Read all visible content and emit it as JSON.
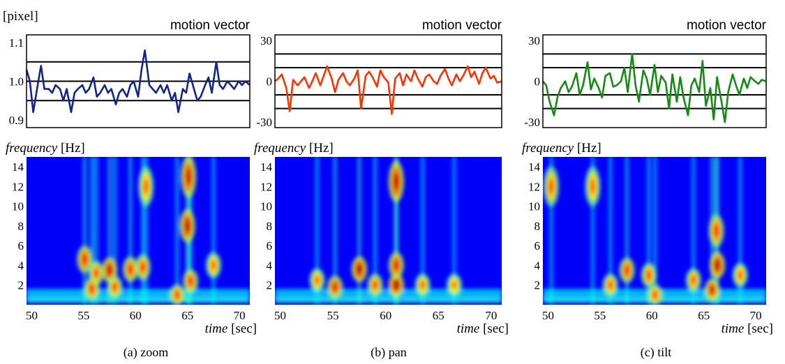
{
  "figure": {
    "unit_label": "[pixel]"
  },
  "chart_data": [
    {
      "type": "line",
      "panel": "zoom",
      "caption": "(a)  zoom",
      "title": "motion vector",
      "color": "#13238f",
      "ylim": [
        0.88,
        1.12
      ],
      "yticks": [
        {
          "v": 1.1,
          "label": "1.1"
        },
        {
          "v": 1.0,
          "label": "1.0"
        },
        {
          "v": 0.9,
          "label": "0.9"
        }
      ],
      "gridlines": [
        1.05,
        1.0,
        0.95
      ],
      "x": [
        50,
        50.3,
        50.6,
        51,
        51.3,
        51.6,
        52,
        52.3,
        52.6,
        53,
        53.3,
        53.6,
        54,
        54.3,
        54.6,
        55,
        55.3,
        55.6,
        56,
        56.3,
        56.6,
        57,
        57.3,
        57.6,
        58,
        58.3,
        58.6,
        59,
        59.3,
        59.6,
        60,
        60.3,
        60.6,
        61,
        61.3,
        61.6,
        62,
        62.3,
        62.6,
        63,
        63.3,
        63.6,
        64,
        64.3,
        64.6,
        65,
        65.3,
        65.6,
        66,
        66.3,
        66.6,
        67,
        67.3,
        67.6,
        68,
        68.3,
        68.6,
        69,
        69.3,
        69.6,
        70
      ],
      "values": [
        1.03,
        1.0,
        0.92,
        0.99,
        1.04,
        0.98,
        0.98,
        0.97,
        0.99,
        0.98,
        0.95,
        0.98,
        0.92,
        0.97,
        0.98,
        0.99,
        0.97,
        0.98,
        1.01,
        0.96,
        0.97,
        0.99,
        0.97,
        0.98,
        0.94,
        0.97,
        0.98,
        0.96,
        0.99,
        1.0,
        0.96,
        1.03,
        1.08,
        0.99,
        0.98,
        0.97,
        0.99,
        0.97,
        0.99,
        0.95,
        0.97,
        0.92,
        0.98,
        0.97,
        1.02,
        0.98,
        0.95,
        0.96,
        0.99,
        1.01,
        0.97,
        1.05,
        0.99,
        0.98,
        1.0,
        0.99,
        0.98,
        1.0,
        0.99,
        1.0,
        0.99
      ],
      "heatmap": {
        "ylabel_word": "frequency",
        "ylabel_unit": "[Hz]",
        "xlabel_word": "time",
        "xlabel_unit": "[sec]",
        "xlim": [
          49.5,
          71
        ],
        "ylim": [
          0,
          15
        ],
        "xticks": [
          {
            "v": 50,
            "label": "50"
          },
          {
            "v": 55,
            "label": "55"
          },
          {
            "v": 60,
            "label": "60"
          },
          {
            "v": 65,
            "label": "65"
          },
          {
            "v": 70,
            "label": "70"
          }
        ],
        "yticks": [
          {
            "v": 14,
            "label": "14"
          },
          {
            "v": 12,
            "label": "12"
          },
          {
            "v": 10,
            "label": "10"
          },
          {
            "v": 8,
            "label": "8"
          },
          {
            "v": 6,
            "label": "6"
          },
          {
            "v": 4,
            "label": "4"
          },
          {
            "v": 2,
            "label": "2"
          }
        ],
        "peaks": [
          {
            "t": 55.1,
            "f": 4.6,
            "intensity": 0.75
          },
          {
            "t": 56.2,
            "f": 3.2,
            "intensity": 0.6
          },
          {
            "t": 57.5,
            "f": 3.5,
            "intensity": 0.9
          },
          {
            "t": 59.5,
            "f": 3.6,
            "intensity": 0.7
          },
          {
            "t": 60.7,
            "f": 3.8,
            "intensity": 0.65
          },
          {
            "t": 55.8,
            "f": 1.6,
            "intensity": 0.7
          },
          {
            "t": 58.0,
            "f": 1.8,
            "intensity": 0.6
          },
          {
            "t": 64.0,
            "f": 1.0,
            "intensity": 0.65
          },
          {
            "t": 65.0,
            "f": 8.0,
            "intensity": 0.9
          },
          {
            "t": 65.1,
            "f": 13.0,
            "intensity": 0.85
          },
          {
            "t": 65.3,
            "f": 2.4,
            "intensity": 0.7
          },
          {
            "t": 67.5,
            "f": 4.0,
            "intensity": 0.5
          },
          {
            "t": 61.0,
            "f": 12.0,
            "intensity": 0.5
          }
        ]
      }
    },
    {
      "type": "line",
      "panel": "pan",
      "caption": "(b)  pan",
      "title": "motion vector",
      "color": "#ff3300",
      "ylim": [
        -34,
        34
      ],
      "yticks": [
        {
          "v": 30,
          "label": "30"
        },
        {
          "v": 0,
          "label": "0"
        },
        {
          "v": -30,
          "label": "-30"
        }
      ],
      "gridlines": [
        20,
        10,
        -10,
        -20
      ],
      "x": [
        50,
        50.3,
        50.6,
        51,
        51.3,
        51.6,
        52,
        52.3,
        52.6,
        53,
        53.3,
        53.6,
        54,
        54.3,
        54.6,
        55,
        55.3,
        55.6,
        56,
        56.3,
        56.6,
        57,
        57.3,
        57.6,
        58,
        58.3,
        58.6,
        59,
        59.3,
        59.6,
        60,
        60.3,
        60.6,
        61,
        61.3,
        61.6,
        62,
        62.3,
        62.6,
        63,
        63.3,
        63.6,
        64,
        64.3,
        64.6,
        65,
        65.3,
        65.6,
        66,
        66.3,
        66.6,
        67,
        67.3,
        67.6,
        68,
        68.3,
        68.6,
        69,
        69.3,
        69.6,
        70
      ],
      "values": [
        0,
        2,
        5,
        -5,
        -22,
        1,
        -3,
        0,
        3,
        -5,
        0,
        6,
        -3,
        4,
        11,
        2,
        -8,
        1,
        6,
        0,
        -3,
        2,
        8,
        -20,
        4,
        7,
        3,
        -4,
        8,
        3,
        -1,
        -24,
        2,
        6,
        -3,
        5,
        0,
        8,
        2,
        -4,
        3,
        5,
        0,
        -2,
        4,
        9,
        2,
        -3,
        5,
        0,
        4,
        11,
        3,
        7,
        -2,
        6,
        10,
        2,
        4,
        -1,
        0
      ],
      "heatmap": {
        "ylabel_word": "frequency",
        "ylabel_unit": "[Hz]",
        "xlabel_word": "time",
        "xlabel_unit": "[sec]",
        "xlim": [
          49.5,
          71
        ],
        "ylim": [
          0,
          15
        ],
        "xticks": [
          {
            "v": 50,
            "label": "50"
          },
          {
            "v": 55,
            "label": "55"
          },
          {
            "v": 60,
            "label": "60"
          },
          {
            "v": 65,
            "label": "65"
          },
          {
            "v": 70,
            "label": "70"
          }
        ],
        "yticks": [
          {
            "v": 14,
            "label": "14"
          },
          {
            "v": 12,
            "label": "12"
          },
          {
            "v": 10,
            "label": "10"
          },
          {
            "v": 8,
            "label": "8"
          },
          {
            "v": 6,
            "label": "6"
          },
          {
            "v": 4,
            "label": "4"
          },
          {
            "v": 2,
            "label": "2"
          }
        ],
        "peaks": [
          {
            "t": 55.2,
            "f": 1.8,
            "intensity": 0.8
          },
          {
            "t": 57.5,
            "f": 3.6,
            "intensity": 0.95
          },
          {
            "t": 59.0,
            "f": 2.0,
            "intensity": 0.6
          },
          {
            "t": 61.0,
            "f": 2.0,
            "intensity": 1.0
          },
          {
            "t": 61.0,
            "f": 4.0,
            "intensity": 0.8
          },
          {
            "t": 61.0,
            "f": 12.5,
            "intensity": 0.9
          },
          {
            "t": 53.5,
            "f": 2.5,
            "intensity": 0.5
          },
          {
            "t": 63.5,
            "f": 2.0,
            "intensity": 0.5
          },
          {
            "t": 66.5,
            "f": 2.0,
            "intensity": 0.45
          }
        ]
      }
    },
    {
      "type": "line",
      "panel": "tilt",
      "caption": "(c)  tilt",
      "title": "motion vector",
      "color": "#138b13",
      "ylim": [
        -34,
        34
      ],
      "yticks": [
        {
          "v": 30,
          "label": "30"
        },
        {
          "v": 0,
          "label": "0"
        },
        {
          "v": -30,
          "label": "-30"
        }
      ],
      "gridlines": [
        20,
        10,
        -10,
        -20
      ],
      "x": [
        50,
        50.3,
        50.6,
        51,
        51.3,
        51.6,
        52,
        52.3,
        52.6,
        53,
        53.3,
        53.6,
        54,
        54.3,
        54.6,
        55,
        55.3,
        55.6,
        56,
        56.3,
        56.6,
        57,
        57.3,
        57.6,
        58,
        58.3,
        58.6,
        59,
        59.3,
        59.6,
        60,
        60.3,
        60.6,
        61,
        61.3,
        61.6,
        62,
        62.3,
        62.6,
        63,
        63.3,
        63.6,
        64,
        64.3,
        64.6,
        65,
        65.3,
        65.6,
        66,
        66.3,
        66.6,
        67,
        67.3,
        67.6,
        68,
        68.3,
        68.6,
        69,
        69.3,
        69.6,
        70
      ],
      "values": [
        0,
        -3,
        -15,
        -25,
        -12,
        -5,
        0,
        -8,
        -4,
        6,
        -10,
        -3,
        14,
        -6,
        2,
        -5,
        -12,
        4,
        6,
        -4,
        -3,
        0,
        10,
        -8,
        20,
        -3,
        -15,
        8,
        2,
        -10,
        12,
        -8,
        4,
        -1,
        -20,
        5,
        -15,
        3,
        -12,
        -25,
        -3,
        2,
        -8,
        15,
        -18,
        -5,
        -28,
        3,
        -15,
        -30,
        -8,
        5,
        -3,
        -10,
        2,
        -5,
        3,
        0,
        -2,
        1,
        0
      ],
      "heatmap": {
        "ylabel_word": "frequency",
        "ylabel_unit": "[Hz]",
        "xlabel_word": "time",
        "xlabel_unit": "[sec]",
        "xlim": [
          49.5,
          71
        ],
        "ylim": [
          0,
          15
        ],
        "xticks": [
          {
            "v": 50,
            "label": "50"
          },
          {
            "v": 55,
            "label": "55"
          },
          {
            "v": 60,
            "label": "60"
          },
          {
            "v": 65,
            "label": "65"
          },
          {
            "v": 70,
            "label": "70"
          }
        ],
        "yticks": [
          {
            "v": 14,
            "label": "14"
          },
          {
            "v": 12,
            "label": "12"
          },
          {
            "v": 10,
            "label": "10"
          },
          {
            "v": 8,
            "label": "8"
          },
          {
            "v": 6,
            "label": "6"
          },
          {
            "v": 4,
            "label": "4"
          },
          {
            "v": 2,
            "label": "2"
          }
        ],
        "peaks": [
          {
            "t": 50.3,
            "f": 12.0,
            "intensity": 0.55
          },
          {
            "t": 54.3,
            "f": 12.0,
            "intensity": 0.5
          },
          {
            "t": 56.0,
            "f": 2.0,
            "intensity": 0.55
          },
          {
            "t": 57.6,
            "f": 3.5,
            "intensity": 0.7
          },
          {
            "t": 59.7,
            "f": 3.0,
            "intensity": 0.6
          },
          {
            "t": 60.3,
            "f": 1.0,
            "intensity": 0.6
          },
          {
            "t": 64.0,
            "f": 2.5,
            "intensity": 0.55
          },
          {
            "t": 65.8,
            "f": 1.5,
            "intensity": 0.85
          },
          {
            "t": 66.3,
            "f": 4.0,
            "intensity": 0.95
          },
          {
            "t": 66.2,
            "f": 7.5,
            "intensity": 0.7
          },
          {
            "t": 68.5,
            "f": 3.0,
            "intensity": 0.5
          }
        ]
      }
    }
  ]
}
